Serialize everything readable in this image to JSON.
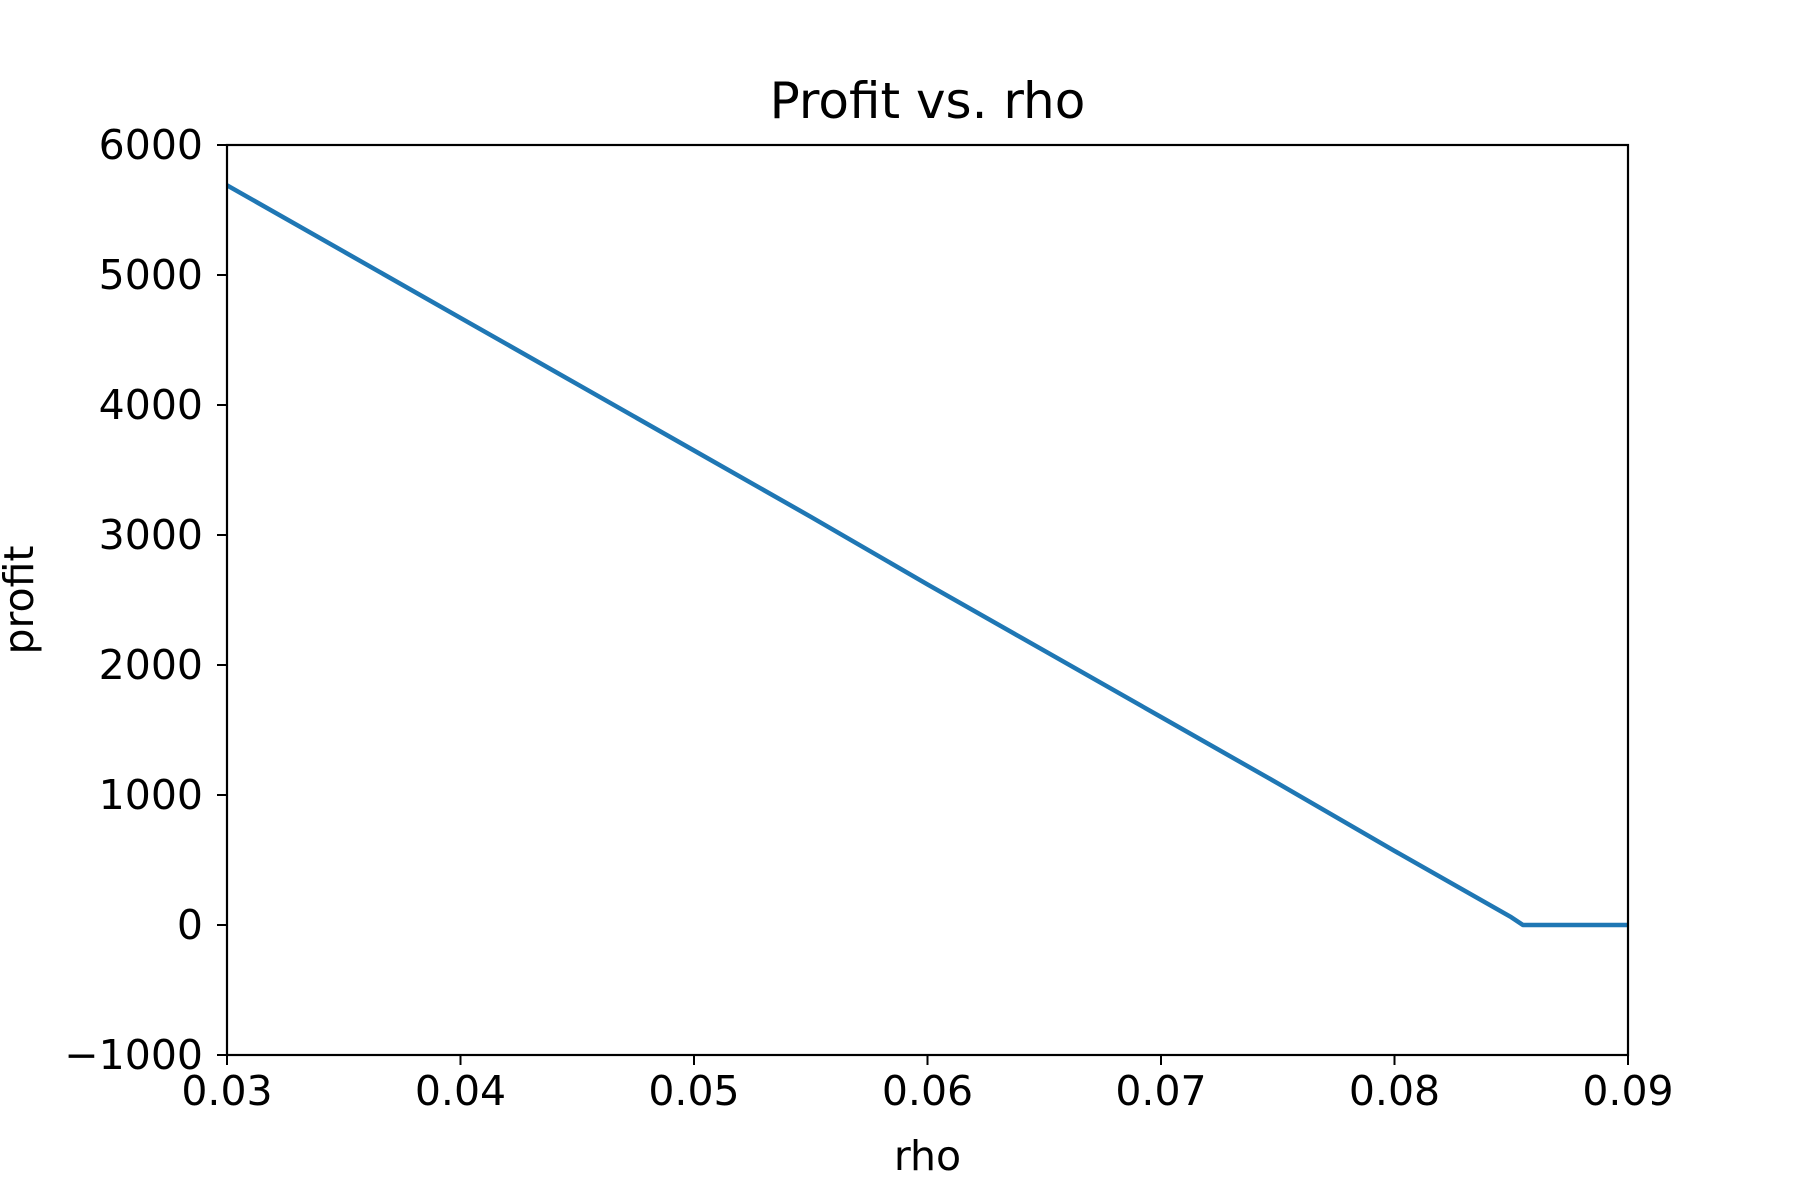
{
  "chart_data": {
    "type": "line",
    "title": "Profit vs. rho",
    "xlabel": "rho",
    "ylabel": "profit",
    "xlim": [
      0.03,
      0.09
    ],
    "ylim": [
      -1000,
      6000
    ],
    "xticks": [
      0.03,
      0.04,
      0.05,
      0.06,
      0.07,
      0.08,
      0.09
    ],
    "xtick_labels": [
      "0.03",
      "0.04",
      "0.05",
      "0.06",
      "0.07",
      "0.08",
      "0.09"
    ],
    "yticks": [
      -1000,
      0,
      1000,
      2000,
      3000,
      4000,
      5000,
      6000
    ],
    "ytick_labels": [
      "−1000",
      "0",
      "1000",
      "2000",
      "3000",
      "4000",
      "5000",
      "6000"
    ],
    "grid": false,
    "series": [
      {
        "color": "#1f77b4",
        "x": [
          0.03,
          0.035,
          0.04,
          0.045,
          0.05,
          0.055,
          0.06,
          0.065,
          0.07,
          0.075,
          0.08,
          0.085,
          0.0855,
          0.086,
          0.087,
          0.088,
          0.089,
          0.09
        ],
        "y": [
          5690,
          5180,
          4670,
          4160,
          3650,
          3140,
          2620,
          2110,
          1600,
          1090,
          570,
          60,
          0,
          0,
          0,
          0,
          0,
          0
        ]
      }
    ]
  }
}
